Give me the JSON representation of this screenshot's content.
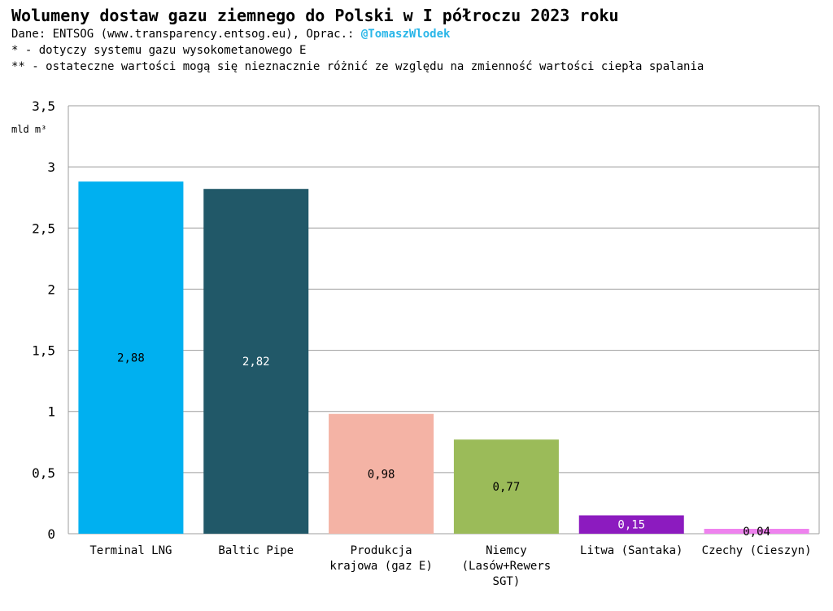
{
  "header": {
    "title": "Wolumeny dostaw gazu ziemnego do Polski w I półroczu 2023 roku",
    "subtitle_prefix": "Dane: ENTSOG (www.transparency.entsog.eu), Oprac.: ",
    "handle": "@TomaszWlodek",
    "note1": "* - dotyczy systemu gazu wysokometanowego E",
    "note2": "** - ostateczne wartości mogą się nieznacznie różnić ze względu na zmienność wartości ciepła spalania"
  },
  "chart_data": {
    "type": "bar",
    "ylabel": "mld m³",
    "ylim": [
      0,
      3.5
    ],
    "yticks": [
      "0",
      "0,5",
      "1",
      "1,5",
      "2",
      "2,5",
      "3",
      "3,5"
    ],
    "grid": true,
    "categories": [
      [
        "Terminal LNG"
      ],
      [
        "Baltic Pipe"
      ],
      [
        "Produkcja",
        "krajowa (gaz E)"
      ],
      [
        "Niemcy",
        "(Lasów+Rewers",
        "SGT)"
      ],
      [
        "Litwa (Santaka)"
      ],
      [
        "Czechy (Cieszyn)"
      ]
    ],
    "values": [
      2.88,
      2.82,
      0.98,
      0.77,
      0.15,
      0.04
    ],
    "value_labels": [
      "2,88",
      "2,82",
      "0,98",
      "0,77",
      "0,15",
      "0,04"
    ],
    "colors": [
      "#00B0F0",
      "#215868",
      "#F4B3A5",
      "#9BBB59",
      "#8C1BBF",
      "#EE82EE"
    ],
    "label_colors": [
      "#000000",
      "#ffffff",
      "#000000",
      "#000000",
      "#ffffff",
      "#000000"
    ]
  }
}
